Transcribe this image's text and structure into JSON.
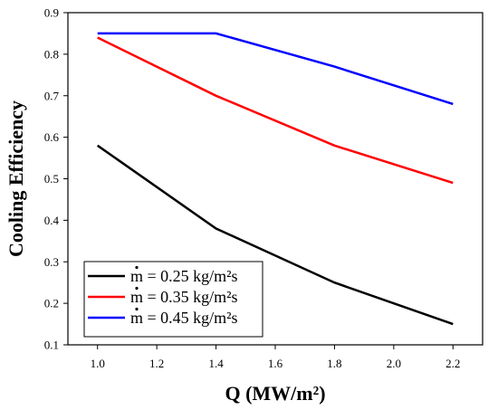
{
  "chart_data": {
    "type": "line",
    "xlabel": "Q (MW/m²)",
    "ylabel": "Cooling Efficiency",
    "xlim": [
      0.9,
      2.3
    ],
    "ylim": [
      0.1,
      0.9
    ],
    "xticks": [
      "1.0",
      "1.2",
      "1.4",
      "1.6",
      "1.8",
      "2.0",
      "2.2"
    ],
    "yticks": [
      "0.1",
      "0.2",
      "0.3",
      "0.4",
      "0.5",
      "0.6",
      "0.7",
      "0.8",
      "0.9"
    ],
    "grid": false,
    "legend_position": "bottom-left",
    "x": [
      1.0,
      1.4,
      1.8,
      2.2
    ],
    "series": [
      {
        "name": "m = 0.25 kg/m²s",
        "color": "#000000",
        "values": [
          0.58,
          0.38,
          0.25,
          0.15
        ]
      },
      {
        "name": "m = 0.35 kg/m²s",
        "color": "#ff0000",
        "values": [
          0.84,
          0.7,
          0.58,
          0.49
        ]
      },
      {
        "name": "m = 0.45 kg/m²s",
        "color": "#0000ff",
        "values": [
          0.85,
          0.85,
          0.77,
          0.68
        ]
      }
    ]
  }
}
